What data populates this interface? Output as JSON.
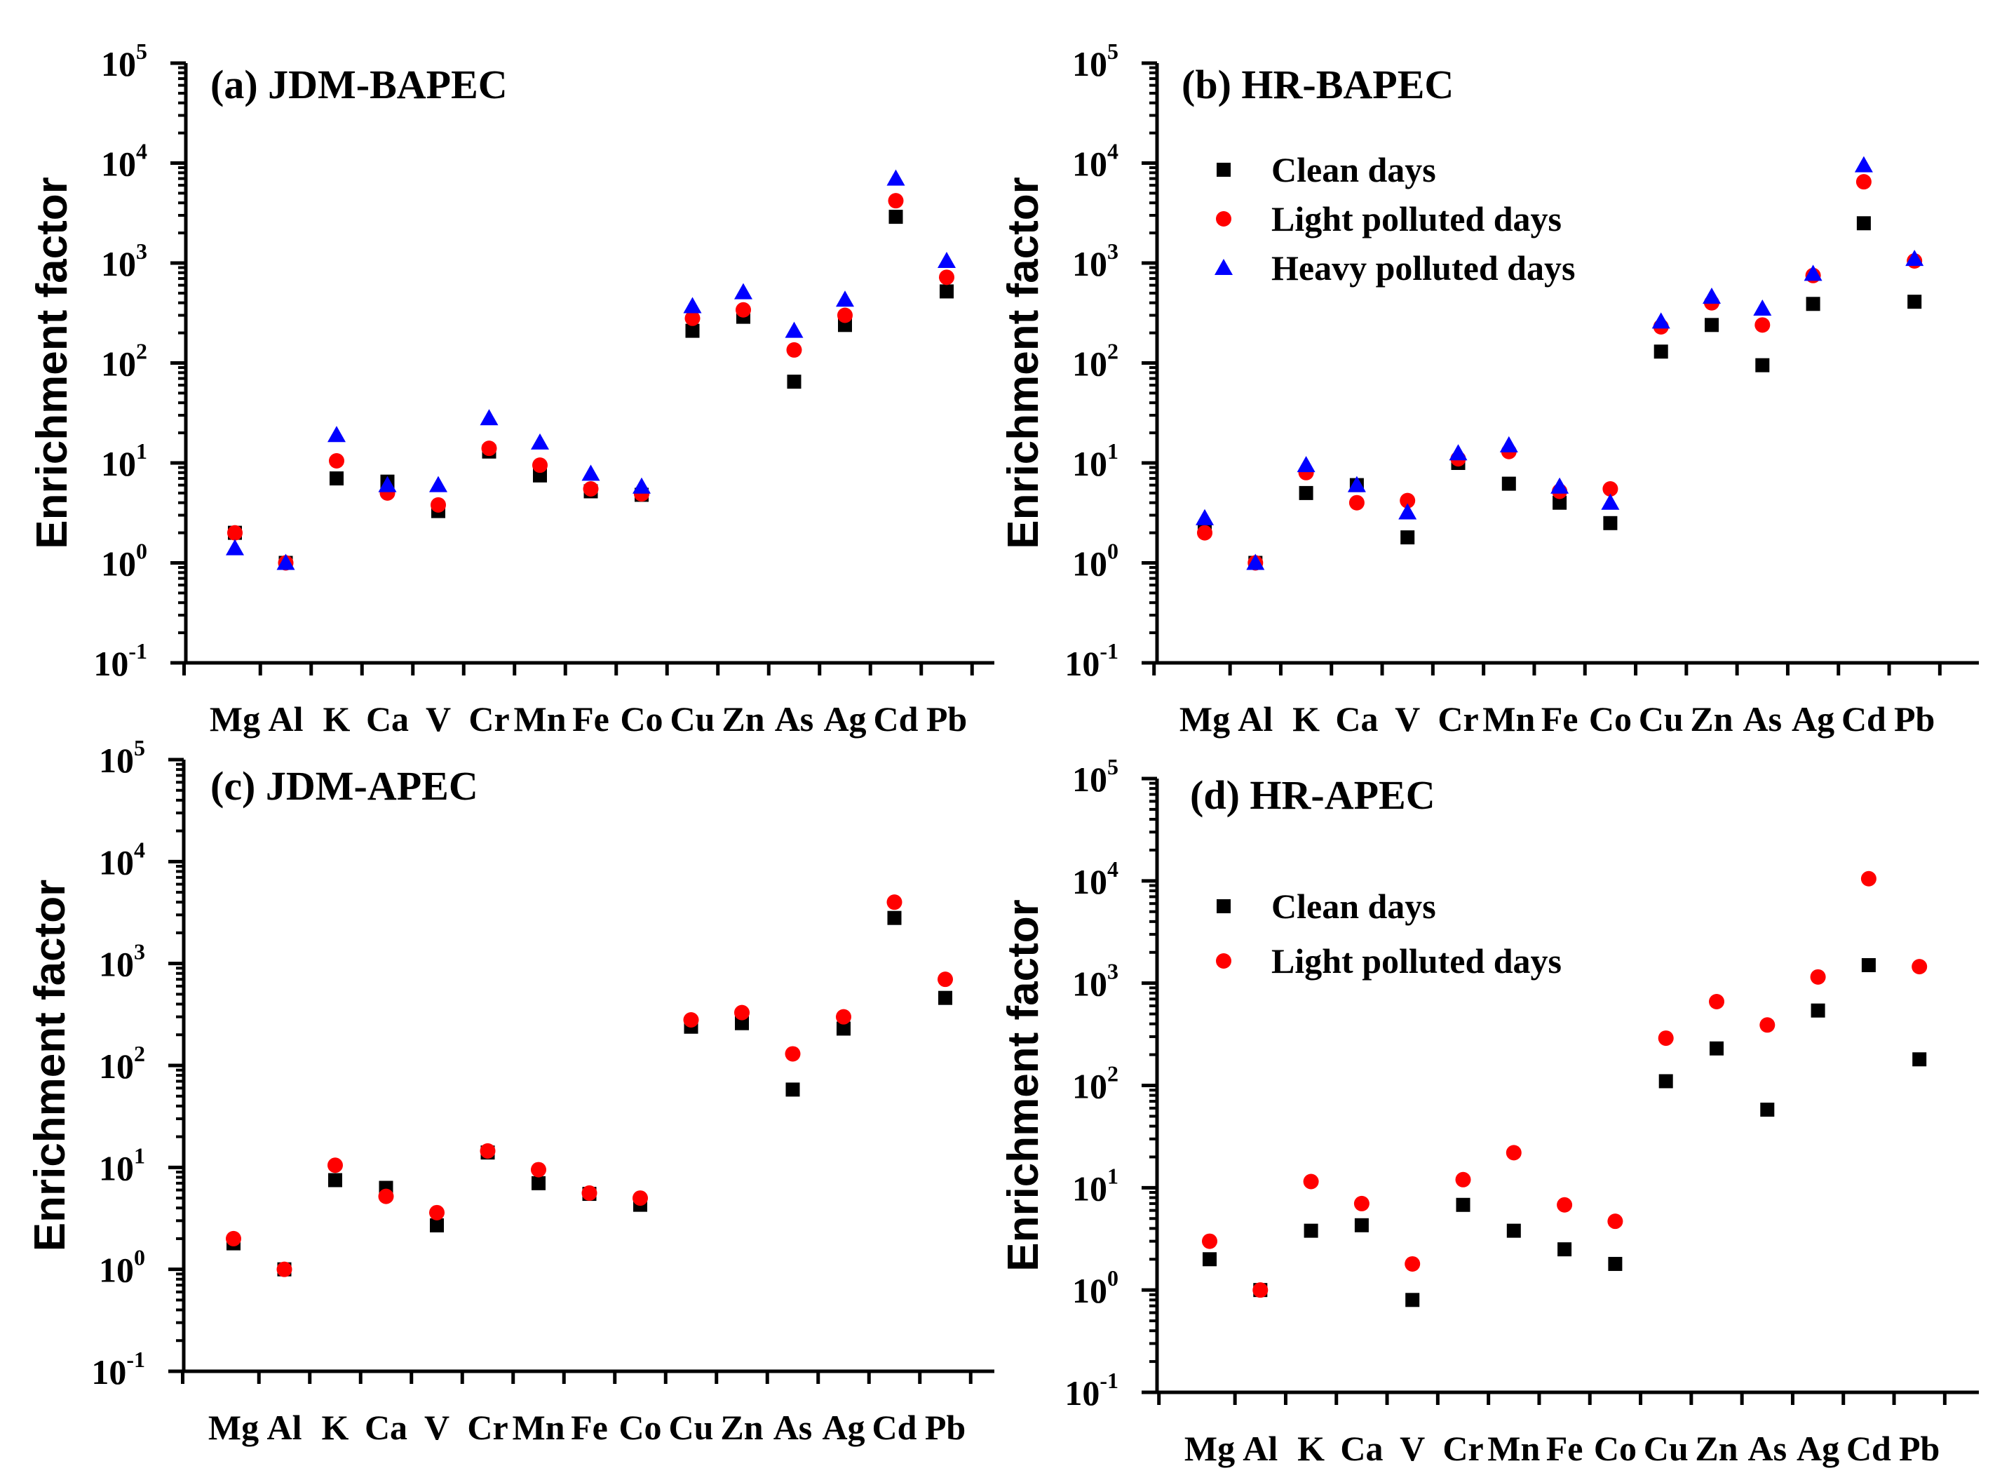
{
  "colors": {
    "clean": "#000000",
    "light": "#ff0000",
    "heavy": "#0000ff"
  },
  "chart_data": [
    {
      "type": "scatter",
      "title": "(a) JDM-BAPEC",
      "ylabel": "Enrichment factor",
      "yscale": "log",
      "ylim": [
        0.1,
        100000
      ],
      "yticks": [
        {
          "base": "10",
          "exp": "-1"
        },
        {
          "base": "10",
          "exp": "0"
        },
        {
          "base": "10",
          "exp": "1"
        },
        {
          "base": "10",
          "exp": "2"
        },
        {
          "base": "10",
          "exp": "3"
        },
        {
          "base": "10",
          "exp": "4"
        },
        {
          "base": "10",
          "exp": "5"
        }
      ],
      "categories": [
        "Mg",
        "Al",
        "K",
        "Ca",
        "V",
        "Cr",
        "Mn",
        "Fe",
        "Co",
        "Cu",
        "Zn",
        "As",
        "Ag",
        "Cd",
        "Pb"
      ],
      "legend": null,
      "series": [
        {
          "name": "Clean days",
          "marker": "square",
          "color": "clean",
          "values": [
            2,
            1,
            7,
            6.5,
            3.3,
            13,
            7.5,
            5.2,
            4.8,
            210,
            290,
            65,
            240,
            2900,
            520
          ]
        },
        {
          "name": "Light polluted days",
          "marker": "circle",
          "color": "light",
          "values": [
            2,
            1,
            10.5,
            5,
            3.8,
            14,
            9.5,
            5.5,
            4.9,
            280,
            340,
            135,
            300,
            4200,
            720
          ]
        },
        {
          "name": "Heavy polluted days",
          "marker": "triangle",
          "color": "heavy",
          "values": [
            1.4,
            1,
            19,
            6,
            6,
            28,
            16,
            7.8,
            5.8,
            370,
            510,
            210,
            430,
            7000,
            1050
          ]
        }
      ]
    },
    {
      "type": "scatter",
      "title": "(b) HR-BAPEC",
      "ylabel": "Enrichment factor",
      "yscale": "log",
      "ylim": [
        0.1,
        100000
      ],
      "yticks": [
        {
          "base": "10",
          "exp": "-1"
        },
        {
          "base": "10",
          "exp": "0"
        },
        {
          "base": "10",
          "exp": "1"
        },
        {
          "base": "10",
          "exp": "2"
        },
        {
          "base": "10",
          "exp": "3"
        },
        {
          "base": "10",
          "exp": "4"
        },
        {
          "base": "10",
          "exp": "5"
        }
      ],
      "categories": [
        "Mg",
        "Al",
        "K",
        "Ca",
        "V",
        "Cr",
        "Mn",
        "Fe",
        "Co",
        "Cu",
        "Zn",
        "As",
        "Ag",
        "Cd",
        "Pb"
      ],
      "legend": [
        "Clean days",
        "Light polluted days",
        "Heavy polluted days"
      ],
      "series": [
        {
          "name": "Clean days",
          "marker": "square",
          "color": "clean",
          "values": [
            2.2,
            1,
            5,
            6,
            1.8,
            10,
            6.2,
            4,
            2.5,
            130,
            240,
            95,
            390,
            2500,
            410
          ]
        },
        {
          "name": "Light polluted days",
          "marker": "circle",
          "color": "light",
          "values": [
            2,
            1,
            8,
            4,
            4.2,
            11,
            13,
            5.2,
            5.5,
            230,
            400,
            240,
            750,
            6500,
            1050
          ]
        },
        {
          "name": "Heavy polluted days",
          "marker": "triangle",
          "color": "heavy",
          "values": [
            2.8,
            1,
            9.5,
            6,
            3.2,
            12.5,
            15,
            5.8,
            4,
            260,
            460,
            350,
            780,
            9500,
            1100
          ]
        }
      ]
    },
    {
      "type": "scatter",
      "title": "(c) JDM-APEC",
      "ylabel": "Enrichment factor",
      "yscale": "log",
      "ylim": [
        0.1,
        100000
      ],
      "yticks": [
        {
          "base": "10",
          "exp": "-1"
        },
        {
          "base": "10",
          "exp": "0"
        },
        {
          "base": "10",
          "exp": "1"
        },
        {
          "base": "10",
          "exp": "2"
        },
        {
          "base": "10",
          "exp": "3"
        },
        {
          "base": "10",
          "exp": "4"
        },
        {
          "base": "10",
          "exp": "5"
        }
      ],
      "categories": [
        "Mg",
        "Al",
        "K",
        "Ca",
        "V",
        "Cr",
        "Mn",
        "Fe",
        "Co",
        "Cu",
        "Zn",
        "As",
        "Ag",
        "Cd",
        "Pb"
      ],
      "legend": null,
      "series": [
        {
          "name": "Clean days",
          "marker": "square",
          "color": "clean",
          "values": [
            1.8,
            1,
            7.5,
            6.3,
            2.7,
            14,
            7,
            5.5,
            4.3,
            240,
            260,
            58,
            230,
            2800,
            460
          ]
        },
        {
          "name": "Light polluted days",
          "marker": "circle",
          "color": "light",
          "values": [
            2,
            1,
            10.5,
            5.2,
            3.6,
            14.5,
            9.5,
            5.6,
            5,
            280,
            330,
            130,
            300,
            4000,
            700
          ]
        }
      ]
    },
    {
      "type": "scatter",
      "title": "(d) HR-APEC",
      "ylabel": "Enrichment factor",
      "yscale": "log",
      "ylim": [
        0.1,
        100000
      ],
      "yticks": [
        {
          "base": "10",
          "exp": "-1"
        },
        {
          "base": "10",
          "exp": "0"
        },
        {
          "base": "10",
          "exp": "1"
        },
        {
          "base": "10",
          "exp": "2"
        },
        {
          "base": "10",
          "exp": "3"
        },
        {
          "base": "10",
          "exp": "4"
        },
        {
          "base": "10",
          "exp": "5"
        }
      ],
      "categories": [
        "Mg",
        "Al",
        "K",
        "Ca",
        "V",
        "Cr",
        "Mn",
        "Fe",
        "Co",
        "Cu",
        "Zn",
        "As",
        "Ag",
        "Cd",
        "Pb"
      ],
      "legend": [
        "Clean days",
        "Light polluted days"
      ],
      "series": [
        {
          "name": "Clean days",
          "marker": "square",
          "color": "clean",
          "values": [
            2,
            1,
            3.8,
            4.3,
            0.8,
            6.8,
            3.8,
            2.5,
            1.8,
            110,
            230,
            58,
            540,
            1500,
            180
          ]
        },
        {
          "name": "Light polluted days",
          "marker": "circle",
          "color": "light",
          "values": [
            3,
            1,
            11.5,
            7,
            1.8,
            12,
            22,
            6.8,
            4.7,
            290,
            660,
            390,
            1150,
            10500,
            1450
          ]
        }
      ]
    }
  ]
}
